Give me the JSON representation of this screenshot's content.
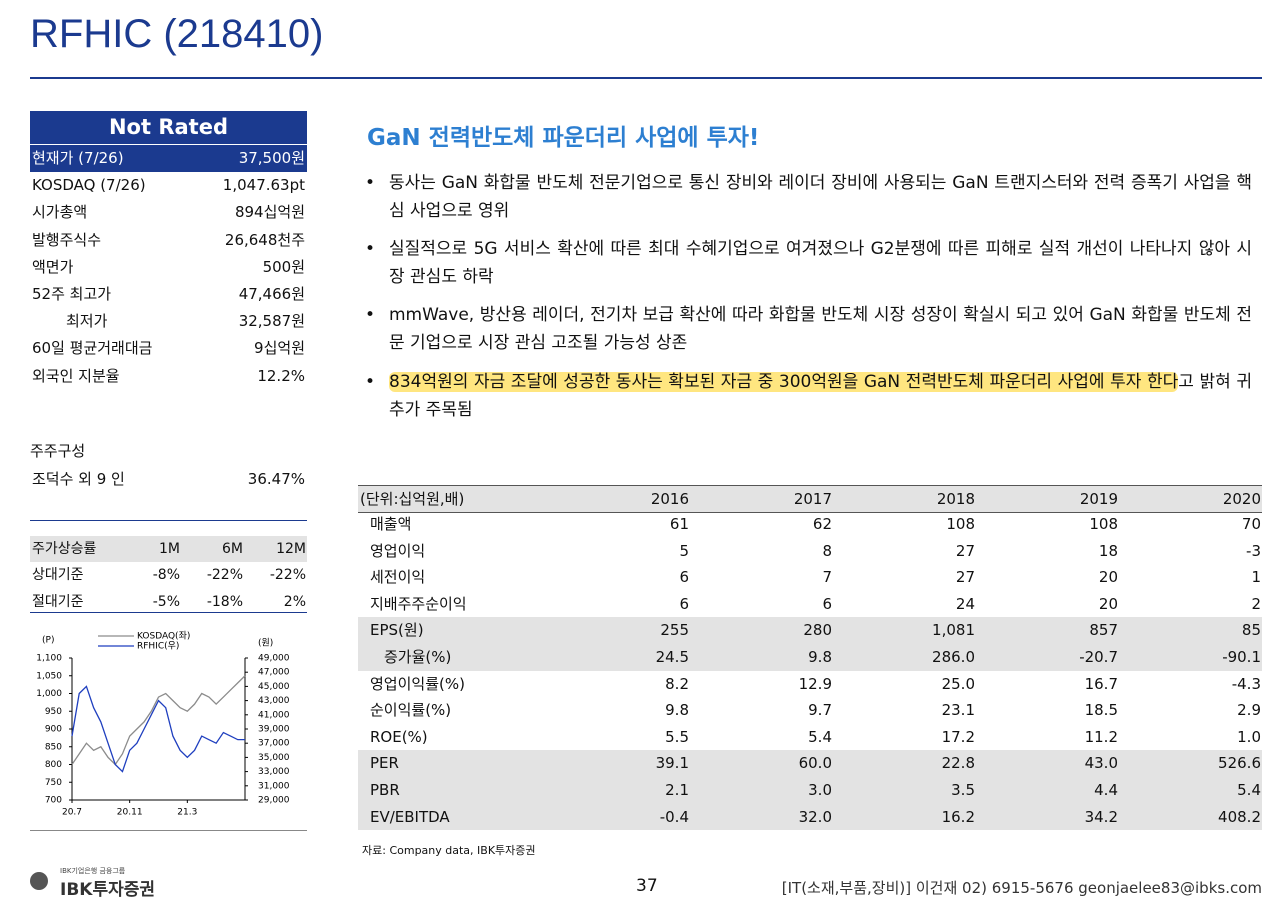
{
  "header": {
    "title": "RFHIC (218410)"
  },
  "rating": "Not Rated",
  "stock_info": [
    [
      "현재가 (7/26)",
      "37,500원"
    ],
    [
      "KOSDAQ (7/26)",
      "1,047.63pt"
    ],
    [
      "시가총액",
      "894십억원"
    ],
    [
      "발행주식수",
      "26,648천주"
    ],
    [
      "액면가",
      "500원"
    ],
    [
      "52주 최고가",
      "47,466원"
    ],
    [
      "최저가",
      "32,587원"
    ],
    [
      "60일 평균거래대금",
      "9십억원"
    ],
    [
      "외국인 지분율",
      "12.2%"
    ]
  ],
  "shareholders": {
    "title": "주주구성",
    "rows": [
      [
        "조덕수 외 9 인",
        "36.47%"
      ]
    ]
  },
  "returns": {
    "header": [
      "주가상승률",
      "1M",
      "6M",
      "12M"
    ],
    "rows": [
      [
        "상대기준",
        "-8%",
        "-22%",
        "-22%"
      ],
      [
        "절대기준",
        "-5%",
        "-18%",
        "2%"
      ]
    ]
  },
  "chart_data": {
    "type": "line",
    "y_label": "(P)",
    "y2_label": "(원)",
    "categories": [
      "20.7",
      null,
      null,
      null,
      null,
      null,
      null,
      null,
      "20.11",
      null,
      null,
      null,
      null,
      null,
      null,
      null,
      "21.3",
      null,
      null,
      null,
      null,
      null,
      null,
      null,
      null
    ],
    "series": [
      {
        "name": "KOSDAQ(좌)",
        "color": "#8c8c8c",
        "values": [
          800,
          830,
          860,
          840,
          850,
          820,
          800,
          830,
          880,
          900,
          920,
          950,
          990,
          1000,
          980,
          960,
          950,
          970,
          1000,
          990,
          970,
          990,
          1010,
          1030,
          1050
        ]
      },
      {
        "name": "RFHIC(우)",
        "color": "#1f3fbf",
        "axis": "y2",
        "values": [
          38000,
          44000,
          45000,
          42000,
          40000,
          37000,
          34000,
          33000,
          36000,
          37000,
          39000,
          41000,
          43000,
          42000,
          38000,
          36000,
          35000,
          36000,
          38000,
          37500,
          37000,
          38500,
          38000,
          37500,
          37500
        ]
      }
    ],
    "ylim": [
      700,
      1100
    ],
    "yticks": [
      700,
      750,
      800,
      850,
      900,
      950,
      {
        "value": 1000,
        "label": "1,000"
      },
      {
        "value": 1050,
        "label": "1,050"
      },
      {
        "value": 1100,
        "label": "1,100"
      }
    ],
    "y2lim": [
      29000,
      49000
    ],
    "y2ticks": [
      {
        "value": 29000,
        "label": "29,000"
      },
      {
        "value": 31000,
        "label": "31,000"
      },
      {
        "value": 33000,
        "label": "33,000"
      },
      {
        "value": 35000,
        "label": "35,000"
      },
      {
        "value": 37000,
        "label": "37,000"
      },
      {
        "value": 39000,
        "label": "39,000"
      },
      {
        "value": 41000,
        "label": "41,000"
      },
      {
        "value": 43000,
        "label": "43,000"
      },
      {
        "value": 45000,
        "label": "45,000"
      },
      {
        "value": 47000,
        "label": "47,000"
      },
      {
        "value": 49000,
        "label": "49,000"
      }
    ]
  },
  "section": {
    "title": "GaN 전력반도체 파운더리 사업에 투자!",
    "bullets": [
      "동사는 GaN 화합물 반도체 전문기업으로 통신 장비와 레이더 장비에 사용되는 GaN 트랜지스터와 전력 증폭기 사업을 핵심 사업으로 영위",
      "실질적으로 5G 서비스 확산에 따른 최대 수혜기업으로 여겨졌으나 G2분쟁에 따른 피해로 실적 개선이 나타나지 않아 시장 관심도 하락",
      "mmWave, 방산용 레이더, 전기차 보급 확산에 따라 화합물 반도체 시장 성장이 확실시 되고 있어 GaN 화합물 반도체 전문 기업으로 시장 관심 고조될 가능성 상존"
    ],
    "highlighted_bullet": {
      "highlight": "834억원의 자금 조달에 성공한 동사는 확보된 자금 중 300억원을 GaN 전력반도체 파운더리 사업에 투자 한다",
      "text": "고 밝혀 귀추가 주목됨"
    }
  },
  "financials": {
    "header": [
      "(단위:십억원,배)",
      "2016",
      "2017",
      "2018",
      "2019",
      "2020"
    ],
    "rows": [
      [
        "매출액",
        "61",
        "62",
        "108",
        "108",
        "70"
      ],
      [
        "영업이익",
        "5",
        "8",
        "27",
        "18",
        "-3"
      ],
      [
        "세전이익",
        "6",
        "7",
        "27",
        "20",
        "1"
      ],
      [
        "지배주주순이익",
        "6",
        "6",
        "24",
        "20",
        "2"
      ],
      [
        "EPS(원)",
        "255",
        "280",
        "1,081",
        "857",
        "85"
      ],
      [
        "증가율(%)",
        "24.5",
        "9.8",
        "286.0",
        "-20.7",
        "-90.1"
      ],
      [
        "영업이익률(%)",
        "8.2",
        "12.9",
        "25.0",
        "16.7",
        "-4.3"
      ],
      [
        "순이익률(%)",
        "9.8",
        "9.7",
        "23.1",
        "18.5",
        "2.9"
      ],
      [
        "ROE(%)",
        "5.5",
        "5.4",
        "17.2",
        "11.2",
        "1.0"
      ],
      [
        "PER",
        "39.1",
        "60.0",
        "22.8",
        "43.0",
        "526.6"
      ],
      [
        "PBR",
        "2.1",
        "3.0",
        "3.5",
        "4.4",
        "5.4"
      ],
      [
        "EV/EBITDA",
        "-0.4",
        "32.0",
        "16.2",
        "34.2",
        "408.2"
      ]
    ],
    "source": "자료: Company data, IBK투자증권"
  },
  "footer": {
    "group": "IBK기업은행 금융그룹",
    "logo": "IBK투자증권",
    "page": "37",
    "contact": "[IT(소재,부품,장비)] 이건재 02) 6915-5676 geonjaelee83@ibks.com"
  }
}
